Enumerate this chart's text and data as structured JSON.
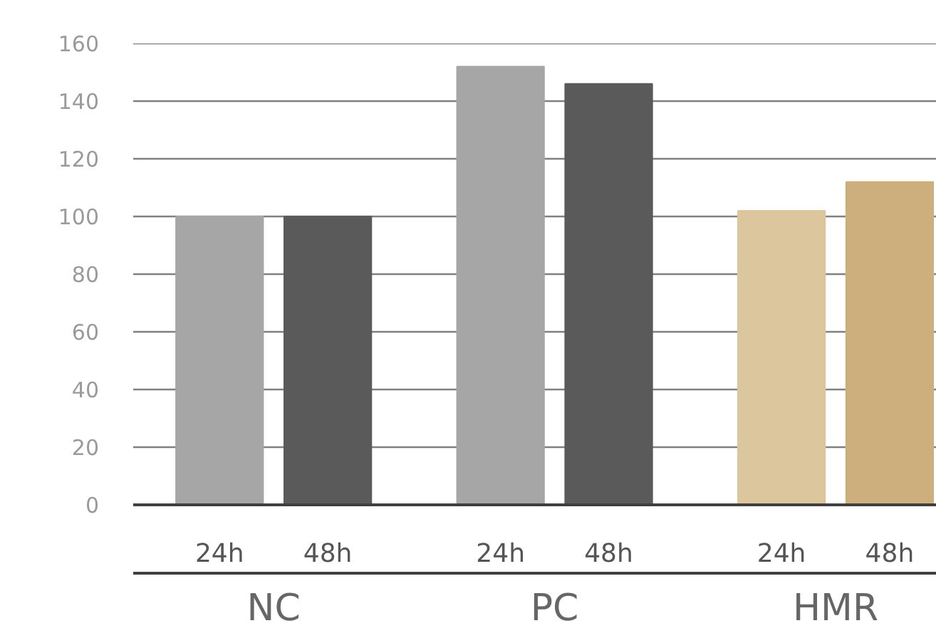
{
  "chart_data": {
    "type": "bar",
    "categories": [
      "NC",
      "PC",
      "HMR"
    ],
    "series": [
      {
        "name": "24h",
        "colors": [
          "#a6a6a6",
          "#a6a6a6",
          "#dcc69d"
        ],
        "values": [
          100,
          152,
          102
        ]
      },
      {
        "name": "48h",
        "colors": [
          "#5a5a5a",
          "#5a5a5a",
          "#cdaf7e"
        ],
        "values": [
          100,
          146,
          112
        ]
      }
    ],
    "ylim": [
      0,
      160
    ],
    "yticks": [
      0,
      20,
      40,
      60,
      80,
      100,
      120,
      140,
      160
    ],
    "grid": "y"
  }
}
